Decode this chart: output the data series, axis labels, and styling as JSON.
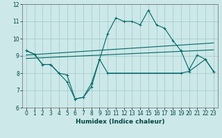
{
  "xlabel": "Humidex (Indice chaleur)",
  "background_color": "#cce8e8",
  "grid_color": "#aacccc",
  "line_color": "#006666",
  "xlim": [
    -0.5,
    23.5
  ],
  "ylim": [
    6,
    12
  ],
  "yticks": [
    6,
    7,
    8,
    9,
    10,
    11,
    12
  ],
  "xticks": [
    0,
    1,
    2,
    3,
    4,
    5,
    6,
    7,
    8,
    9,
    10,
    11,
    12,
    13,
    14,
    15,
    16,
    17,
    18,
    19,
    20,
    21,
    22,
    23
  ],
  "curve1_x": [
    0,
    1,
    2,
    3,
    4,
    5,
    6,
    7,
    8,
    9,
    10,
    11,
    12,
    13,
    14,
    15,
    16,
    17,
    18,
    19,
    20,
    21,
    22,
    23
  ],
  "curve1_y": [
    9.3,
    9.1,
    8.5,
    8.5,
    8.0,
    7.5,
    6.5,
    6.6,
    7.4,
    8.8,
    10.3,
    11.2,
    11.0,
    11.0,
    10.8,
    11.65,
    10.8,
    10.6,
    9.9,
    9.3,
    8.2,
    9.05,
    8.8,
    8.1
  ],
  "curve2_x": [
    0,
    1,
    2,
    3,
    4,
    5,
    6,
    7,
    8,
    9,
    10,
    19,
    20,
    22,
    23
  ],
  "curve2_y": [
    9.3,
    9.1,
    8.5,
    8.5,
    8.0,
    7.9,
    6.5,
    6.6,
    7.2,
    8.8,
    8.0,
    8.0,
    8.1,
    8.8,
    8.1
  ],
  "line3_x": [
    0,
    23
  ],
  "line3_y": [
    8.85,
    9.35
  ],
  "line4_x": [
    0,
    23
  ],
  "line4_y": [
    9.05,
    9.75
  ]
}
